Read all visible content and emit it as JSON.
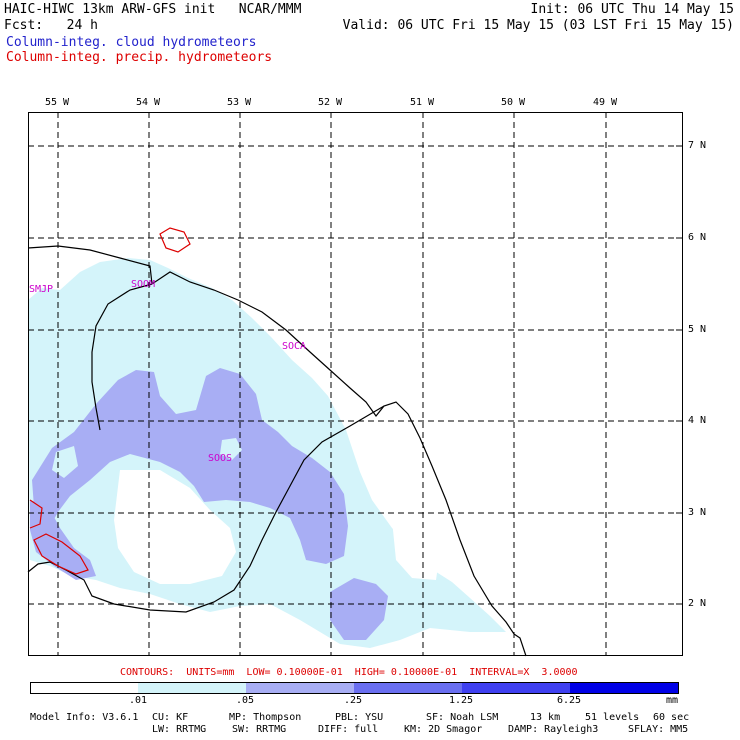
{
  "header": {
    "line1_left": "HAIC-HIWC 13km ARW-GFS init   NCAR/MMM",
    "line1_right": "Init: 06 UTC Thu 14 May 15",
    "line2_left": "Fcst:   24 h",
    "line2_right": "Valid: 06 UTC Fri 15 May 15 (03 LST Fri 15 May 15)",
    "legend_blue": "Column-integ. cloud hydrometeors",
    "legend_red": "Column-integ. precip. hydrometeors"
  },
  "colors": {
    "blue_text": "#2222cc",
    "red_text": "#dd0000",
    "station_text": "#cc00cc",
    "fill_light": "#d4f4fa",
    "fill_mid": "#a8aef4",
    "fill_dark": "#6a6ff0",
    "fill_darker": "#3f40f0",
    "fill_darkest": "#0000e6"
  },
  "map": {
    "lon_labels": [
      "55 W",
      "54 W",
      "53 W",
      "52 W",
      "51 W",
      "50 W",
      "49 W"
    ],
    "lat_labels": [
      "7 N",
      "6 N",
      "5 N",
      "4 N",
      "3 N",
      "2 N"
    ],
    "stations": [
      "SMJP",
      "SOOM",
      "SOCA",
      "SOOS"
    ]
  },
  "contour_info": "CONTOURS:  UNITS=mm  LOW= 0.10000E-01  HIGH= 0.10000E-01  INTERVAL=X  3.0000",
  "colorbar": {
    "ticks": [
      ".01",
      ".05",
      ".25",
      "1.25",
      "6.25"
    ],
    "units": "mm"
  },
  "footer": {
    "line1": [
      "Model Info: V3.6.1",
      "CU: KF",
      "MP: Thompson",
      "PBL: YSU",
      "SF: Noah LSM",
      "13 km",
      "51 levels",
      "60 sec"
    ],
    "line2": [
      "LW: RRTMG",
      "SW: RRTMG",
      "DIFF: full",
      "KM: 2D Smagor",
      "DAMP: Rayleigh3",
      "SFLAY: MM5"
    ]
  }
}
